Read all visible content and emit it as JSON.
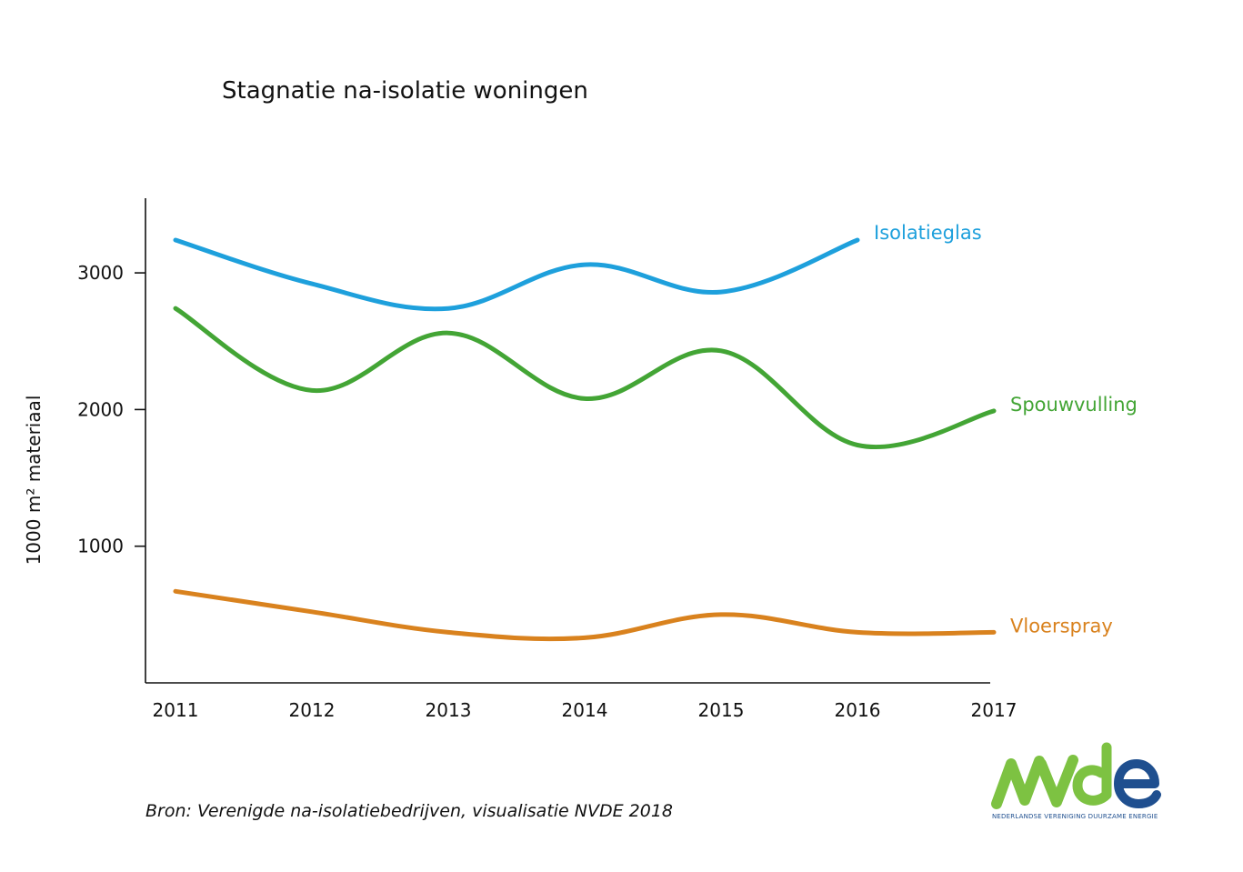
{
  "chart_data": {
    "type": "line",
    "title": "Stagnatie na-isolatie woningen",
    "ylabel": "1000 m² materiaal",
    "xlabel": "",
    "categories": [
      "2011",
      "2012",
      "2013",
      "2014",
      "2015",
      "2016",
      "2017"
    ],
    "yticks": [
      "1000",
      "2000",
      "3000"
    ],
    "ylim": [
      0,
      3550
    ],
    "grid": false,
    "legend": "inline labels at line ends",
    "series": [
      {
        "name": "Isolatieglas",
        "color": "#1ea0dc",
        "values": [
          3240,
          2920,
          2740,
          3060,
          2860,
          3240,
          null
        ]
      },
      {
        "name": "Spouwvulling",
        "color": "#43a535",
        "values": [
          2740,
          2140,
          2560,
          2080,
          2430,
          1740,
          1990
        ]
      },
      {
        "name": "Vloerspray",
        "color": "#d9821e",
        "values": [
          670,
          520,
          370,
          330,
          500,
          370,
          370
        ]
      }
    ]
  },
  "source": "Bron: Verenigde na-isolatiebedrijven, visualisatie NVDE 2018",
  "logo": {
    "wordmark": "NVDE",
    "tagline": "NEDERLANDSE VERENIGING DUURZAME ENERGIE",
    "colors": {
      "green": "#7dc242",
      "blue": "#1f4f8f"
    }
  }
}
